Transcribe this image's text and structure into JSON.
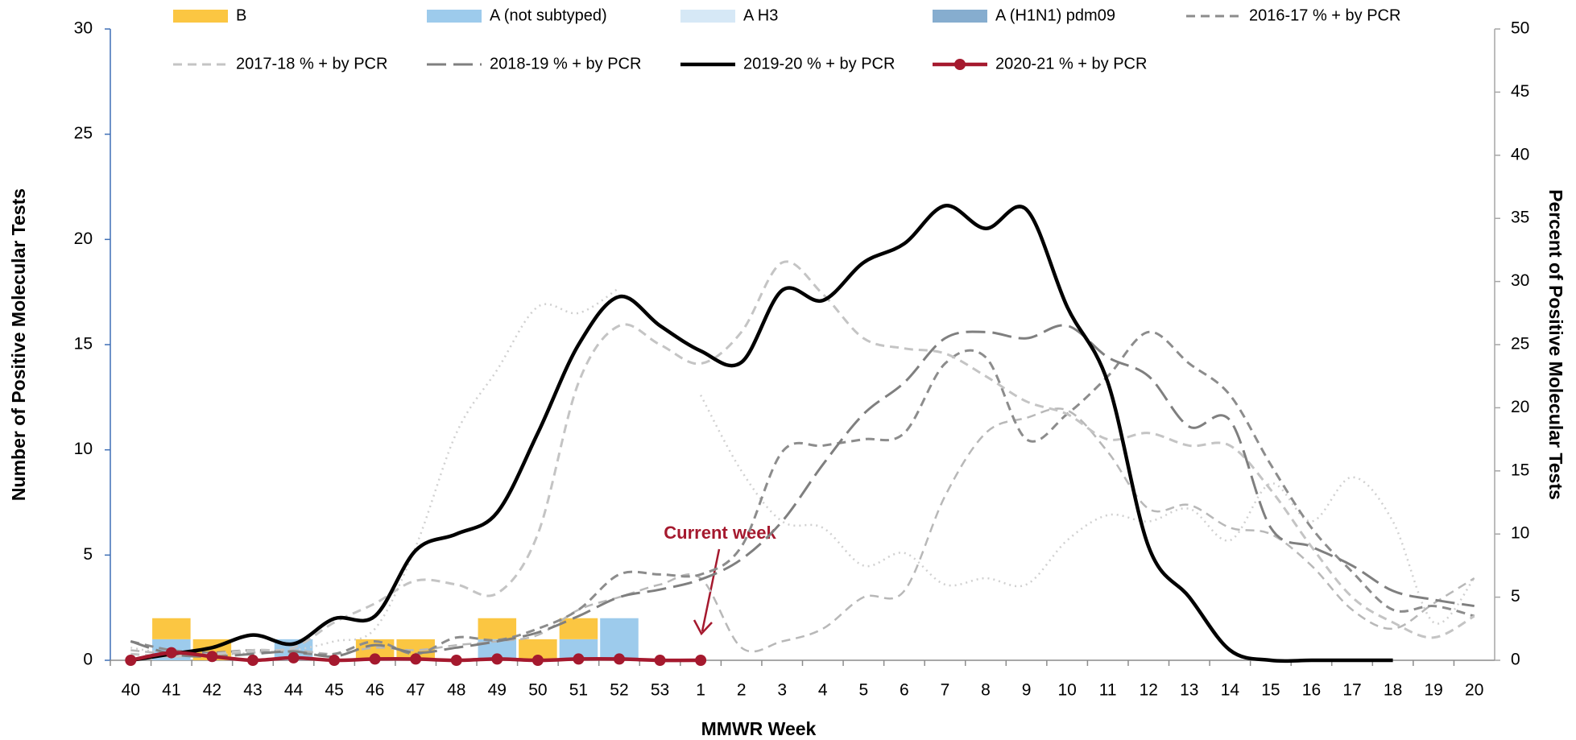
{
  "chart_data": {
    "type": "combo",
    "x_label": "MMWR Week",
    "y_label": "Number of Positive Molecular Tests",
    "y2_label": "Percent of Positive Molecular Tests",
    "annotation": "Current week",
    "categories": [
      "40",
      "41",
      "42",
      "43",
      "44",
      "45",
      "46",
      "47",
      "48",
      "49",
      "50",
      "51",
      "52",
      "53",
      "1",
      "2",
      "3",
      "4",
      "5",
      "6",
      "7",
      "8",
      "9",
      "10",
      "11",
      "12",
      "13",
      "14",
      "15",
      "16",
      "17",
      "18",
      "19",
      "20"
    ],
    "ylim": [
      0,
      30
    ],
    "yticks": [
      0,
      5,
      10,
      15,
      20,
      25,
      30
    ],
    "y2lim": [
      0,
      50
    ],
    "y2ticks": [
      0,
      5,
      10,
      15,
      20,
      25,
      30,
      35,
      40,
      45,
      50
    ],
    "series": [
      {
        "name": "B",
        "type": "bar",
        "color": "#fbc642",
        "values": [
          0,
          1,
          1,
          0,
          0,
          0,
          1,
          1,
          0,
          1,
          1,
          1,
          0,
          0,
          0,
          0,
          0,
          0,
          0,
          0,
          0,
          0,
          0,
          0,
          0,
          0,
          0,
          0,
          0,
          0,
          0,
          0,
          0,
          0
        ]
      },
      {
        "name": "A (not subtyped)",
        "type": "bar",
        "color": "#9dcbec",
        "values": [
          0,
          1,
          0,
          0,
          1,
          0,
          0,
          0,
          0,
          1,
          0,
          1,
          2,
          0,
          0,
          0,
          0,
          0,
          0,
          0,
          0,
          0,
          0,
          0,
          0,
          0,
          0,
          0,
          0,
          0,
          0,
          0,
          0,
          0
        ]
      },
      {
        "name": "A H3",
        "type": "bar",
        "color": "#d6e8f6",
        "values": [
          0,
          0,
          0,
          0,
          0,
          0,
          0,
          0,
          0,
          0,
          0,
          0,
          0,
          0,
          0,
          0,
          0,
          0,
          0,
          0,
          0,
          0,
          0,
          0,
          0,
          0,
          0,
          0,
          0,
          0,
          0,
          0,
          0,
          0
        ]
      },
      {
        "name": "A (H1N1) pdm09",
        "type": "bar",
        "color": "#86adcf",
        "values": [
          0,
          0,
          0,
          0,
          0,
          0,
          0,
          0,
          0,
          0,
          0,
          0,
          0,
          0,
          0,
          0,
          0,
          0,
          0,
          0,
          0,
          0,
          0,
          0,
          0,
          0,
          0,
          0,
          0,
          0,
          0,
          0,
          0,
          0
        ]
      },
      {
        "name": "2016-17 % + by PCR",
        "type": "line",
        "axis": "y2",
        "color": "#8c8c8c",
        "style": "dashed",
        "values": [
          1.5,
          0.8,
          0.6,
          0.8,
          0.6,
          0.5,
          1.5,
          0.5,
          1.8,
          1.6,
          2.5,
          4,
          6.8,
          6.8,
          6.8,
          9,
          16.5,
          17,
          17.5,
          18,
          23.5,
          24,
          17.5,
          19.5,
          22.5,
          26,
          23.5,
          21,
          15.5,
          10.5,
          7,
          4,
          4.3,
          3.5
        ]
      },
      {
        "name": "2017-18 % + by PCR",
        "type": "line",
        "axis": "y2",
        "color": "#c4c4c4",
        "style": "dashed",
        "values": [
          0.5,
          0.3,
          0.5,
          0.8,
          1,
          3,
          4.5,
          6.3,
          6,
          5.3,
          10,
          22,
          26.5,
          25,
          23.5,
          26,
          31.5,
          29,
          25.5,
          24.7,
          24.3,
          22.5,
          20.5,
          19.5,
          17.5,
          18,
          17,
          17,
          13.5,
          9,
          5,
          3,
          1.8,
          3.5
        ]
      },
      {
        "name": "2018-19 % + by PCR",
        "type": "line",
        "axis": "y2",
        "color": "#7f7f7f",
        "style": "long-dashed",
        "values": [
          1.5,
          0.5,
          0.3,
          0.5,
          0.7,
          0.3,
          1.2,
          0.6,
          1,
          1.5,
          2.2,
          3.5,
          5,
          5.6,
          6.4,
          8,
          11,
          15.5,
          19.5,
          22,
          25.5,
          26,
          25.5,
          26.5,
          24,
          22.5,
          18.5,
          19,
          10.5,
          9,
          7.5,
          5.5,
          4.8,
          4.3
        ]
      },
      {
        "name": "2019-20 % + by PCR",
        "type": "line",
        "axis": "y2",
        "color": "#000000",
        "style": "solid",
        "values": [
          0,
          0.5,
          1,
          2,
          1.3,
          3.3,
          3.5,
          8.7,
          10,
          11.7,
          18,
          25,
          28.8,
          26.5,
          24.5,
          23.6,
          29.3,
          28.5,
          31.5,
          33,
          36,
          34.2,
          35.7,
          28,
          22,
          9,
          5,
          0.8,
          0,
          0,
          0,
          0,
          null,
          null
        ]
      },
      {
        "name": "2020-21 % + by PCR",
        "type": "line",
        "axis": "y2",
        "color": "#a5192e",
        "style": "solid",
        "markers": true,
        "values": [
          0,
          0.6,
          0.3,
          0,
          0.2,
          0,
          0.1,
          0.1,
          0,
          0.1,
          0,
          0.1,
          0.1,
          0,
          0,
          null,
          null,
          null,
          null,
          null,
          null,
          null,
          null,
          null,
          null,
          null,
          null,
          null,
          null,
          null,
          null,
          null,
          null,
          null
        ]
      },
      {
        "type": "line",
        "axis": "y2",
        "color": "#d0d0d0",
        "style": "dotted",
        "values": [
          1,
          0.5,
          0.4,
          0.6,
          0.8,
          1.5,
          2.5,
          9,
          18,
          23,
          28,
          27.5,
          29.5,
          null,
          21,
          15,
          11,
          10.5,
          7.5,
          8.5,
          6,
          6.5,
          6,
          9.5,
          11.5,
          11,
          12,
          9.5,
          14,
          11,
          14.5,
          11,
          3,
          6.5
        ]
      },
      {
        "type": "line",
        "axis": "y2",
        "color": "#b8b8b8",
        "style": "dashed",
        "values": [
          0.8,
          0.5,
          0.5,
          0.6,
          0.8,
          0.5,
          1,
          0.8,
          1.2,
          1.5,
          2,
          4,
          5,
          6,
          6.5,
          1,
          1.5,
          2.5,
          5,
          5.5,
          13,
          18,
          19.2,
          19.8,
          16.5,
          12,
          12.3,
          10.5,
          10,
          7.5,
          4,
          2.5,
          4.5,
          6.5
        ]
      }
    ]
  }
}
